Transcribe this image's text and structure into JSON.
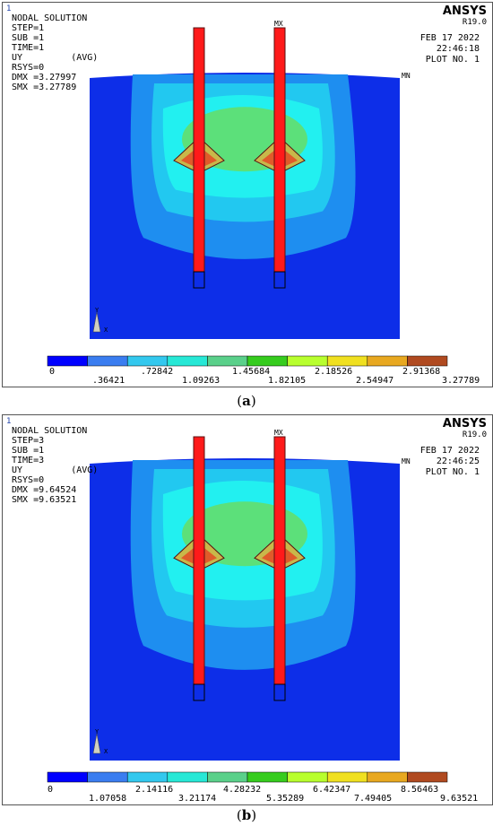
{
  "panels": [
    {
      "id": "a",
      "caption_letter": "a",
      "window_number": "1",
      "title": "NODAL SOLUTION",
      "lines": [
        "STEP=1",
        "SUB =1",
        "TIME=1",
        "UY         (AVG)",
        "RSYS=0",
        "DMX =3.27997",
        "SMX =3.27789"
      ],
      "brand": "ANSYS",
      "version": "R19.0",
      "date": "FEB 17 2022",
      "time": "22:46:18",
      "plot_no": "PLOT NO.   1",
      "mx_label": "MX",
      "mn_label": "MN",
      "triad_y": "Y",
      "triad_x": "X",
      "legend_top": [
        "0",
        ".72842",
        "1.45684",
        "2.18526",
        "2.91368"
      ],
      "legend_bottom": [
        ".36421",
        "1.09263",
        "1.82105",
        "2.54947",
        "3.27789"
      ]
    },
    {
      "id": "b",
      "caption_letter": "b",
      "window_number": "1",
      "title": "NODAL SOLUTION",
      "lines": [
        "STEP=3",
        "SUB =1",
        "TIME=3",
        "UY         (AVG)",
        "RSYS=0",
        "DMX =9.64524",
        "SMX =9.63521"
      ],
      "brand": "ANSYS",
      "version": "R19.0",
      "date": "FEB 17 2022",
      "time": "22:46:25",
      "plot_no": "PLOT NO.   1",
      "mx_label": "MX",
      "mn_label": "MN",
      "triad_y": "Y",
      "triad_x": "X",
      "legend_top": [
        "0",
        "2.14116",
        "4.28232",
        "6.42347",
        "8.56463"
      ],
      "legend_bottom": [
        "1.07058",
        "3.21174",
        "5.35289",
        "7.49405",
        "9.63521"
      ]
    }
  ],
  "legend_colors": [
    "#0000ff",
    "#3a7df0",
    "#33c8ee",
    "#27e8d6",
    "#5ad08a",
    "#36cc1e",
    "#b8ff2e",
    "#f0e020",
    "#e8a820",
    "#b04a20"
  ],
  "field_colors": {
    "outer": "#0d2ee8",
    "band1": "#1e8ef0",
    "band2": "#22c8f0",
    "core": "#22f0f0",
    "green": "#5ce07a",
    "anchor": "#ff1a1a",
    "anchor_outline": "#5a1010"
  }
}
